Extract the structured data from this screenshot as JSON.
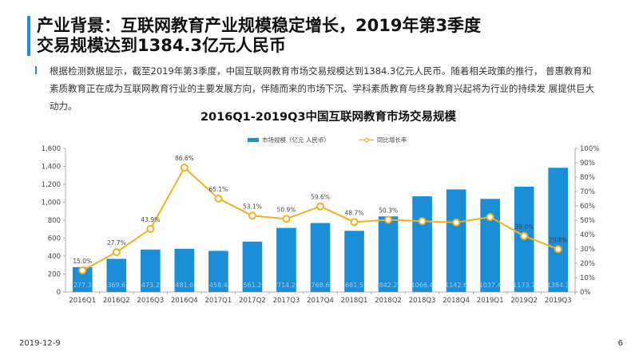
{
  "headline": {
    "line1": "产业背景：互联网教育产业规模稳定增长，2019年第3季度",
    "line2": "交易规模达到1384.3亿元人民币"
  },
  "body": {
    "line1": "根据检测数据显示，截至2019年第3季度，中国互联网教育市场交易规模达到1384.3亿元人民币。随着相关政策的推行，    普惠教育和",
    "line2": "素质教育正在成为互联网教育行业的主要发展方向，伴随而来的市场下沉、学科素质教育与终身教育兴起将为行业的持续发 展提供巨大",
    "line3": "动力。"
  },
  "footer": {
    "date": "2019-12-9",
    "page": "6"
  },
  "colors": {
    "accent": "#1a8fd8",
    "bar": "#1a8fd8",
    "line": "#f2b01e",
    "marker_fill": "#ffffff"
  },
  "chart_data": {
    "type": "bar",
    "title": "2016Q1-2019Q3中国互联网教育市场交易规模",
    "categories": [
      "2016Q1",
      "2016Q2",
      "2016Q3",
      "2016Q4",
      "2017Q1",
      "2017Q2",
      "2017Q3",
      "2017Q4",
      "2018Q1",
      "2018Q2",
      "2018Q3",
      "2018Q4",
      "2019Q1",
      "2019Q2",
      "2019Q3"
    ],
    "series": [
      {
        "name": "市场规模（亿元  人民币）",
        "type": "bar",
        "axis": "left",
        "values": [
          277.3,
          369.6,
          473.2,
          481.6,
          458.4,
          561.2,
          714.2,
          768.6,
          681.5,
          842.2,
          1066.4,
          1142.6,
          1037.4,
          1173.7,
          1384.3
        ],
        "labels": [
          "277.3",
          "369.6",
          "473.2",
          "481.6",
          "458.4",
          "561.2",
          "714.2",
          "768.6",
          "681.5",
          "842.2",
          "1066.4",
          "1142.6",
          "1037.4",
          "1173.7",
          "1384.3"
        ]
      },
      {
        "name": "同比增长率",
        "type": "line",
        "axis": "right",
        "values": [
          15.0,
          27.7,
          43.9,
          86.6,
          65.1,
          53.1,
          50.9,
          59.6,
          48.7,
          50.3,
          49.3,
          48.4,
          52.2,
          39.0,
          29.8
        ],
        "labels": [
          "15.0%",
          "27.7%",
          "43.9%",
          "86.6%",
          "65.1%",
          "53.1%",
          "50.9%",
          "59.6%",
          "48.7%",
          "50.3%",
          "",
          "",
          "",
          "39.0%",
          "29.8%"
        ]
      }
    ],
    "y_left": {
      "ylim": [
        0,
        1600
      ],
      "ticks": [
        "0",
        "200",
        "400",
        "600",
        "800",
        "1,000",
        "1,200",
        "1,400",
        "1,600"
      ]
    },
    "y_right": {
      "ylim": [
        0,
        100
      ],
      "ticks": [
        "0%",
        "10%",
        "20%",
        "30%",
        "40%",
        "50%",
        "60%",
        "70%",
        "80%",
        "90%",
        "100%"
      ]
    },
    "legend_position": "top-center",
    "grid": false
  }
}
